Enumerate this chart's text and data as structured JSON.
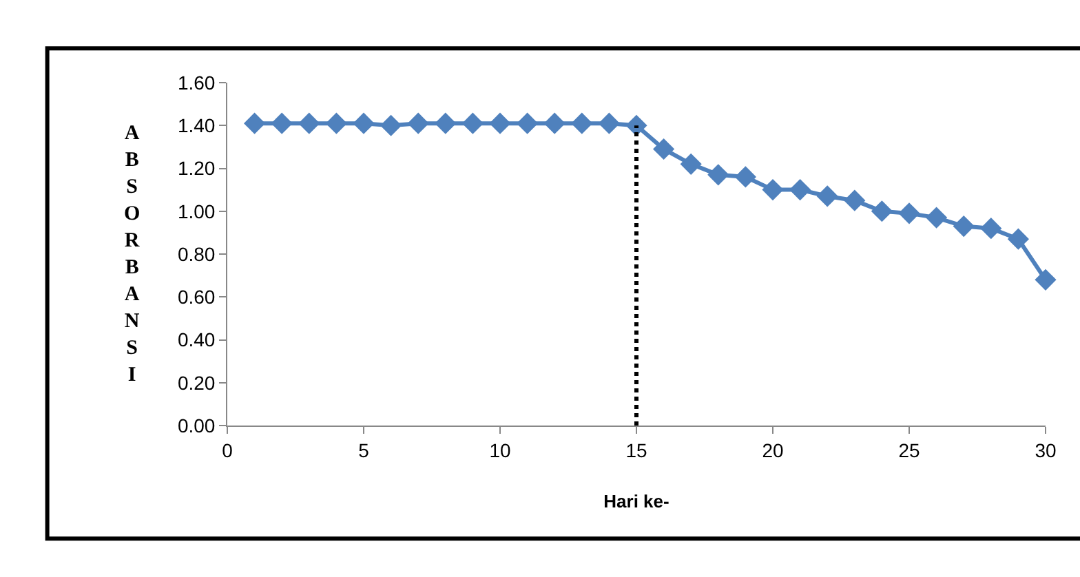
{
  "chart_data": {
    "type": "line",
    "xlabel": "Hari ke-",
    "ylabel": "ABSORBANSI",
    "x": [
      1,
      2,
      3,
      4,
      5,
      6,
      7,
      8,
      9,
      10,
      11,
      12,
      13,
      14,
      15,
      16,
      17,
      18,
      19,
      20,
      21,
      22,
      23,
      24,
      25,
      26,
      27,
      28,
      29,
      30
    ],
    "series": [
      {
        "color": "#4f81bd",
        "values": [
          1.41,
          1.41,
          1.41,
          1.41,
          1.41,
          1.4,
          1.41,
          1.41,
          1.41,
          1.41,
          1.41,
          1.41,
          1.41,
          1.41,
          1.4,
          1.29,
          1.22,
          1.17,
          1.16,
          1.1,
          1.1,
          1.07,
          1.05,
          1.0,
          0.99,
          0.97,
          0.93,
          0.92,
          0.87,
          0.68
        ]
      }
    ],
    "xlim": [
      0,
      30
    ],
    "xticks": [
      0,
      5,
      10,
      15,
      20,
      25,
      30
    ],
    "ylim": [
      0,
      1.6
    ],
    "yticks": [
      {
        "value": 0,
        "label": "0.00"
      },
      {
        "value": 0.2,
        "label": "0.20"
      },
      {
        "value": 0.4,
        "label": "0.40"
      },
      {
        "value": 0.6,
        "label": "0.60"
      },
      {
        "value": 0.8,
        "label": "0.80"
      },
      {
        "value": 1.0,
        "label": "1.00"
      },
      {
        "value": 1.2,
        "label": "1.20"
      },
      {
        "value": 1.4,
        "label": "1.40"
      },
      {
        "value": 1.6,
        "label": "1.60"
      }
    ],
    "ref_lines": [
      {
        "axis": "x",
        "value": 15,
        "color": "#000000",
        "line_style": "dotted"
      }
    ],
    "marker": "diamond",
    "line_style": "solid"
  }
}
